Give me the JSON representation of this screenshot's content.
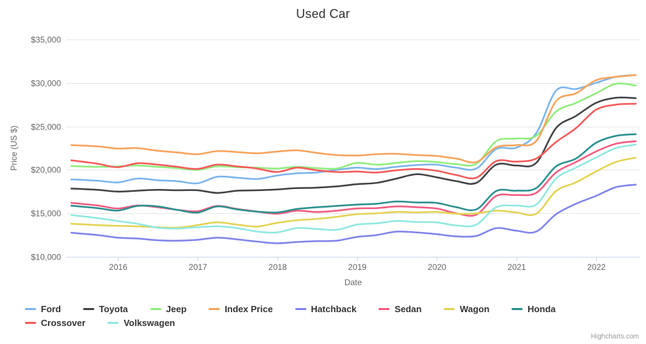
{
  "chart_data": {
    "type": "line",
    "title": "Used Car",
    "xlabel": "Date",
    "ylabel": "Price (US $)",
    "ylim": [
      10000,
      35000
    ],
    "grid": "horizontal",
    "legend_position": "bottom",
    "x_unit": "decimal_year",
    "x": [
      2015.42,
      2015.75,
      2016.0,
      2016.25,
      2016.5,
      2016.75,
      2017.0,
      2017.25,
      2017.5,
      2017.75,
      2018.0,
      2018.25,
      2018.5,
      2018.75,
      2019.0,
      2019.25,
      2019.5,
      2019.75,
      2020.0,
      2020.25,
      2020.5,
      2020.75,
      2021.0,
      2021.25,
      2021.5,
      2021.75,
      2022.0,
      2022.25,
      2022.5
    ],
    "x_ticks": [
      {
        "value": 2016,
        "label": "2016"
      },
      {
        "value": 2017,
        "label": "2017"
      },
      {
        "value": 2018,
        "label": "2018"
      },
      {
        "value": 2019,
        "label": "2019"
      },
      {
        "value": 2020,
        "label": "2020"
      },
      {
        "value": 2021,
        "label": "2021"
      },
      {
        "value": 2022,
        "label": "2022"
      }
    ],
    "y_ticks": [
      {
        "value": 10000,
        "label": "$10,000"
      },
      {
        "value": 15000,
        "label": "$15,000"
      },
      {
        "value": 20000,
        "label": "$20,000"
      },
      {
        "value": 25000,
        "label": "$25,000"
      },
      {
        "value": 30000,
        "label": "$30,000"
      },
      {
        "value": 35000,
        "label": "$35,000"
      }
    ],
    "series": [
      {
        "name": "Ford",
        "color": "#7cb5ec",
        "values": [
          18900,
          18750,
          18550,
          19000,
          18800,
          18700,
          18450,
          19200,
          19100,
          18950,
          19350,
          19600,
          19700,
          20000,
          20250,
          20100,
          20350,
          20550,
          20600,
          20250,
          20150,
          22400,
          22550,
          24200,
          29100,
          29300,
          30000,
          30700,
          30900
        ]
      },
      {
        "name": "Toyota",
        "color": "#434348",
        "values": [
          17850,
          17700,
          17500,
          17600,
          17700,
          17650,
          17650,
          17350,
          17600,
          17650,
          17750,
          17900,
          17950,
          18100,
          18350,
          18500,
          19000,
          19500,
          19150,
          18700,
          18500,
          20600,
          20500,
          20800,
          24800,
          26200,
          27700,
          28300,
          28250
        ]
      },
      {
        "name": "Jeep",
        "color": "#90ed7d",
        "values": [
          20450,
          20350,
          20400,
          20500,
          20350,
          20200,
          20000,
          20400,
          20300,
          20250,
          20150,
          20350,
          20200,
          20150,
          20800,
          20600,
          20800,
          21000,
          20900,
          20650,
          20700,
          23300,
          23600,
          23900,
          26700,
          27700,
          28800,
          29900,
          29700
        ]
      },
      {
        "name": "Index Price",
        "color": "#f7a35c",
        "values": [
          22850,
          22700,
          22450,
          22500,
          22200,
          22000,
          21800,
          22150,
          22050,
          21900,
          22100,
          22250,
          21950,
          21700,
          21650,
          21800,
          21850,
          21700,
          21600,
          21300,
          20900,
          22600,
          22850,
          23300,
          27900,
          28800,
          30300,
          30700,
          30900
        ]
      },
      {
        "name": "Hatchback",
        "color": "#8085e9",
        "values": [
          12760,
          12500,
          12200,
          12100,
          11900,
          11850,
          11950,
          12200,
          12000,
          11750,
          11550,
          11700,
          11800,
          11850,
          12280,
          12500,
          12900,
          12800,
          12600,
          12350,
          12400,
          13300,
          13000,
          12900,
          14900,
          16100,
          17000,
          18000,
          18300
        ]
      },
      {
        "name": "Sedan",
        "color": "#f15c80",
        "values": [
          16200,
          15900,
          15560,
          15900,
          15700,
          15400,
          15240,
          15850,
          15500,
          15200,
          14950,
          15300,
          15150,
          15300,
          15560,
          15600,
          15800,
          15700,
          15560,
          15000,
          14850,
          17000,
          17100,
          17350,
          19700,
          20900,
          22100,
          23000,
          23300
        ]
      },
      {
        "name": "Wagon",
        "color": "#e4d354",
        "values": [
          13800,
          13650,
          13560,
          13500,
          13400,
          13350,
          13640,
          13960,
          13700,
          13480,
          13900,
          14200,
          14360,
          14600,
          14900,
          15000,
          15160,
          15100,
          15160,
          14950,
          15000,
          15300,
          15100,
          14950,
          17560,
          18560,
          19800,
          20900,
          21400
        ]
      },
      {
        "name": "Honda",
        "color": "#2b908f",
        "values": [
          15880,
          15600,
          15320,
          15850,
          15800,
          15400,
          15080,
          15800,
          15450,
          15200,
          15100,
          15500,
          15700,
          15850,
          16000,
          16100,
          16360,
          16250,
          16200,
          15700,
          15450,
          17560,
          17600,
          17900,
          20400,
          21300,
          23100,
          23900,
          24100
        ]
      },
      {
        "name": "Crossover",
        "color": "#f45b5b",
        "values": [
          21100,
          20700,
          20300,
          20760,
          20600,
          20350,
          20100,
          20600,
          20400,
          20150,
          19750,
          20250,
          19950,
          19750,
          19800,
          19700,
          19950,
          20100,
          19900,
          19400,
          19100,
          21000,
          20950,
          21300,
          23200,
          24800,
          26900,
          27500,
          27600
        ]
      },
      {
        "name": "Volkswagen",
        "color": "#91e8e1",
        "values": [
          14800,
          14450,
          14120,
          13800,
          13350,
          13250,
          13400,
          13500,
          13300,
          12900,
          12800,
          13300,
          13200,
          13100,
          13700,
          13850,
          14120,
          14000,
          13960,
          13600,
          13700,
          15700,
          15900,
          16000,
          19000,
          20250,
          21400,
          22500,
          22900
        ]
      }
    ]
  },
  "credit": "Highcharts.com",
  "colors": {
    "background": "#ffffff",
    "title_text": "#333333",
    "axis_label": "#666666",
    "gridline": "#e6e6e6",
    "axis_line": "#ccd6eb",
    "legend_text": "#333333",
    "credit_text": "#999999"
  }
}
